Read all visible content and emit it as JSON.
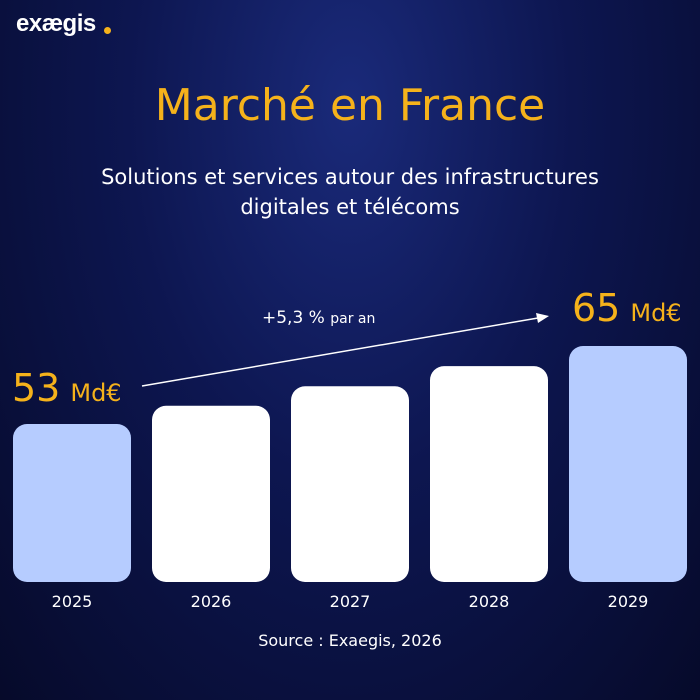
{
  "brand": {
    "name": "exægis",
    "dot_color": "#f5b21b"
  },
  "title": "Marché en France",
  "subtitle_line1": "Solutions et services autour des infrastructures",
  "subtitle_line2": "digitales et télécoms",
  "source": "Source : Exaegis, 2026",
  "colors": {
    "accent": "#f5b21b",
    "highlight_bar": "#b6ccff",
    "bar": "#ffffff",
    "background": "#0d1650"
  },
  "growth_label": {
    "value": "+5,3 %",
    "suffix": "par an"
  },
  "callouts": {
    "start": {
      "value": "53",
      "unit": "Md€"
    },
    "end": {
      "value": "65",
      "unit": "Md€"
    }
  },
  "chart_data": {
    "type": "bar",
    "title": "Marché en France",
    "categories": [
      "2025",
      "2026",
      "2027",
      "2028",
      "2029"
    ],
    "values": [
      53,
      55.8,
      58.8,
      61.9,
      65
    ],
    "unit": "Md€",
    "highlighted": [
      "2025",
      "2029"
    ],
    "growth_rate": "+5,3 % par an",
    "grid": false,
    "xlabel": "",
    "ylabel": ""
  }
}
